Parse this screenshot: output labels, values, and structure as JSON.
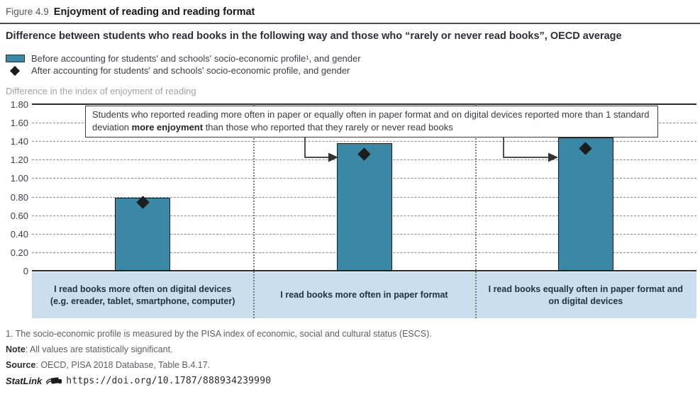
{
  "header": {
    "figure_label": "Figure 4.9",
    "title": "Enjoyment of reading and reading format"
  },
  "subtitle": "Difference between students who read books in the following way and those who “rarely or never read books”, OECD average",
  "legend": {
    "before_label": "Before accounting for students' and schools' socio-economic profile¹, and gender",
    "after_label": "After accounting for students' and schools' socio-economic profile, and gender"
  },
  "axis_title": "Difference in the index of enjoyment of reading",
  "annotation": {
    "pre": "Students who reported reading more often in paper or equally often in paper format and on digital devices reported more than 1 standard deviation ",
    "bold": "more enjoyment",
    "post": " than those who reported that they rarely or never read books"
  },
  "chart_data": {
    "type": "bar",
    "title": "Enjoyment of reading and reading format",
    "ylabel": "Difference in the index of enjoyment of reading",
    "ylim": [
      0,
      1.8
    ],
    "grid": "horizontal dashed, vertical dotted panel separators",
    "legend_position": "top-left",
    "categories": [
      "I read books more often on digital devices (e.g. ereader, tablet, smartphone, computer)",
      "I read books more often in paper format",
      "I read books equally often in paper format and on digital devices"
    ],
    "series": [
      {
        "name": "Before accounting for students' and schools' socio-economic profile, and gender",
        "marker": "bar",
        "values": [
          0.79,
          1.38,
          1.44
        ]
      },
      {
        "name": "After accounting for students' and schools' socio-economic profile, and gender",
        "marker": "diamond",
        "values": [
          0.74,
          1.26,
          1.32
        ]
      }
    ],
    "yticks": [
      {
        "label": "1.80",
        "value": 1.8
      },
      {
        "label": "1.60",
        "value": 1.6
      },
      {
        "label": "1.40",
        "value": 1.4
      },
      {
        "label": "1.20",
        "value": 1.2
      },
      {
        "label": "1.00",
        "value": 1.0
      },
      {
        "label": "0.80",
        "value": 0.8
      },
      {
        "label": "0.60",
        "value": 0.6
      },
      {
        "label": "0.40",
        "value": 0.4
      },
      {
        "label": "0.20",
        "value": 0.2
      },
      {
        "label": "0",
        "value": 0
      }
    ],
    "colors": {
      "bar_fill": "#3a87a6",
      "bar_border": "#1a1a1a",
      "diamond_marker": "#1d1d1d",
      "category_band": "#cadfee",
      "gridline": "#8a8a8a",
      "axis_line": "#2a2a2a"
    }
  },
  "footnotes": {
    "fn1": "1. The socio-economic profile is measured by the PISA index of economic, social and cultural status (ESCS).",
    "note_label": "Note",
    "note_text": ": All values are statistically significant.",
    "source_label": "Source",
    "source_text": ": OECD, PISA 2018 Database, Table B.4.17.",
    "statlink_label": "StatLink",
    "statlink_url": "https://doi.org/10.1787/888934239990"
  }
}
